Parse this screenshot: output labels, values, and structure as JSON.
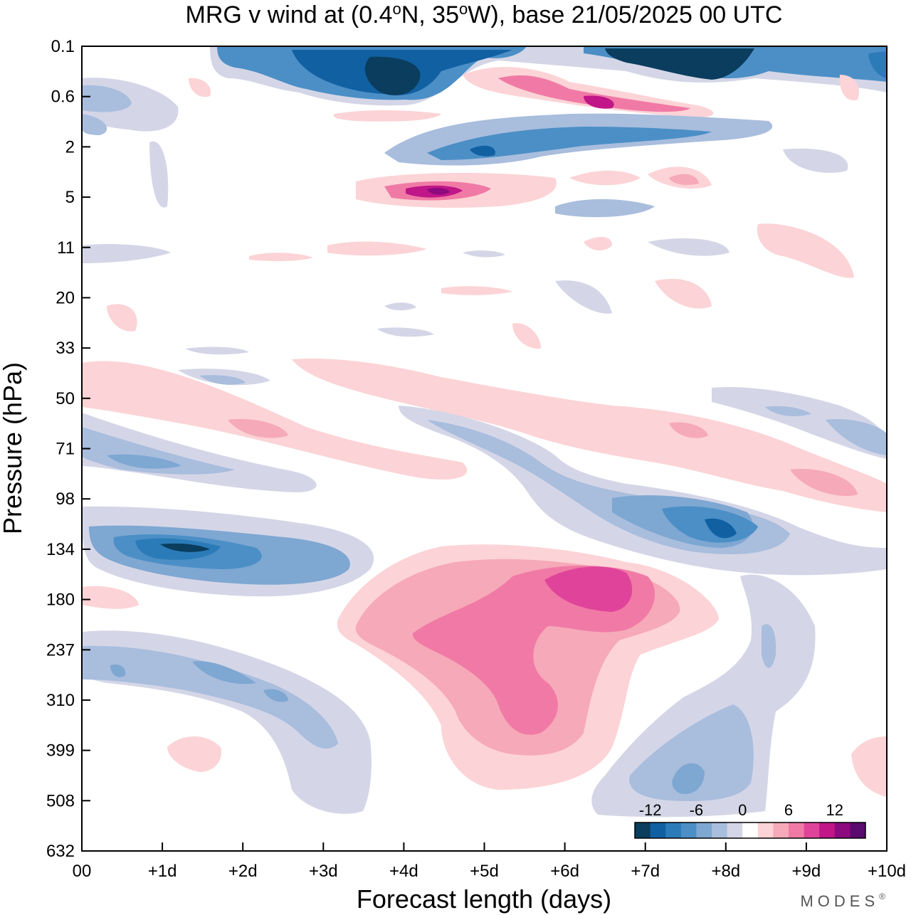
{
  "chart_data": {
    "type": "heatmap",
    "title": "MRG v wind at (0.4°N, 35°W),  base 21/05/2025  00 UTC",
    "title_parts": {
      "pre": "MRG v wind at (0.4",
      "deg1": "o",
      "mid": "N, 35",
      "deg2": "o",
      "post": "W),  base 21/05/2025  00 UTC"
    },
    "xlabel": "Forecast length (days)",
    "ylabel": "Pressure (hPa)",
    "x_ticks": [
      "00",
      "+1d",
      "+2d",
      "+3d",
      "+4d",
      "+5d",
      "+6d",
      "+7d",
      "+8d",
      "+9d",
      "+10d"
    ],
    "y_ticks": [
      "0.1",
      "0.6",
      "2",
      "5",
      "11",
      "20",
      "33",
      "50",
      "71",
      "98",
      "134",
      "180",
      "237",
      "310",
      "399",
      "508",
      "632"
    ],
    "xlim": [
      0,
      10
    ],
    "colorbar": {
      "levels": [
        -12,
        -10,
        -8,
        -6,
        -4,
        -2,
        0,
        2,
        4,
        6,
        8,
        10,
        12
      ],
      "labels": [
        "-12",
        "-6",
        "0",
        "6",
        "12"
      ],
      "label_values": [
        -12,
        -6,
        0,
        6,
        12
      ],
      "colors": [
        "#0a3d5e",
        "#1160a2",
        "#2b7bb8",
        "#4b8fc6",
        "#7ea7d2",
        "#a9bddd",
        "#d4d6e7",
        "#ffffff",
        "#fcd3d6",
        "#f6a9b8",
        "#f07aa5",
        "#e0449a",
        "#c01688",
        "#8c0a7e",
        "#5a0a6e"
      ]
    },
    "features": [
      {
        "region": "0.1 hPa, +0d to +1d",
        "day": 0.3,
        "level": "0.6",
        "value": -4
      },
      {
        "region": "0.1–0.6 hPa, +2d to +4.5d",
        "day": 3.9,
        "level": "0.3",
        "value": -14
      },
      {
        "region": "0.1 hPa, +7d to +8.5d",
        "day": 7.8,
        "level": "0.15",
        "value": -14
      },
      {
        "region": "0.6 hPa, +6.5d",
        "day": 6.3,
        "level": "0.7",
        "value": 10
      },
      {
        "region": "2 hPa, +5d to +7.5d",
        "day": 6.0,
        "level": "2",
        "value": -8
      },
      {
        "region": "5 hPa, +4.5d",
        "day": 4.5,
        "level": "5",
        "value": 12
      },
      {
        "region": "71 hPa, +1d",
        "day": 1.3,
        "level": "71",
        "value": -6
      },
      {
        "region": "60 hPa, +2d",
        "day": 2.2,
        "level": "60",
        "value": 4
      },
      {
        "region": "134 hPa, +1.5d",
        "day": 1.5,
        "level": "134",
        "value": -10
      },
      {
        "region": "120 hPa, +8d",
        "day": 8.0,
        "level": "120",
        "value": -10
      },
      {
        "region": "180–310 hPa, +4.5d to +7d",
        "day": 5.8,
        "level": "210",
        "value": 10
      },
      {
        "region": "237 hPa, +1d to +2.5d",
        "day": 1.5,
        "level": "250",
        "value": -6
      },
      {
        "region": "450 hPa, +7.5d",
        "day": 7.6,
        "level": "450",
        "value": -5
      },
      {
        "region": "85 hPa, +9d",
        "day": 9.1,
        "level": "85",
        "value": 5
      }
    ]
  },
  "brand": "MODES",
  "brand_mark": "®"
}
